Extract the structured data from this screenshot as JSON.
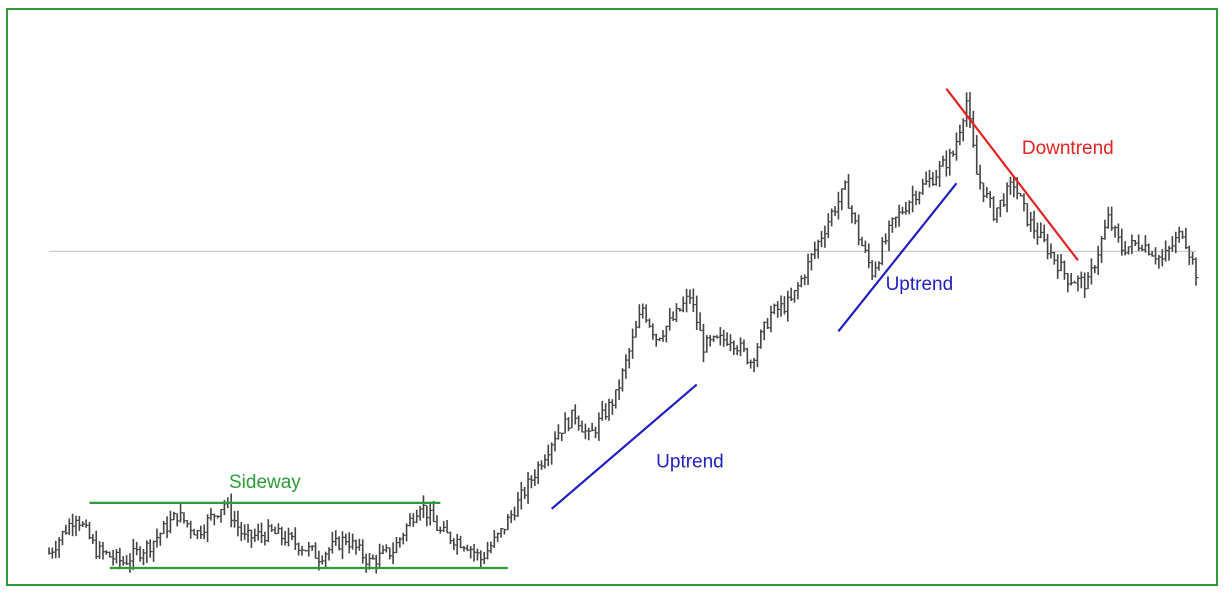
{
  "chart_data": {
    "type": "line",
    "title": "",
    "xlabel": "",
    "ylabel": "",
    "price_path": [
      [
        0,
        5
      ],
      [
        8,
        18
      ],
      [
        14,
        6
      ],
      [
        22,
        2
      ],
      [
        30,
        8
      ],
      [
        38,
        18
      ],
      [
        44,
        12
      ],
      [
        52,
        22
      ],
      [
        58,
        10
      ],
      [
        66,
        12
      ],
      [
        74,
        8
      ],
      [
        80,
        4
      ],
      [
        88,
        10
      ],
      [
        95,
        2
      ],
      [
        102,
        6
      ],
      [
        110,
        22
      ],
      [
        116,
        12
      ],
      [
        124,
        8
      ],
      [
        128,
        3
      ],
      [
        134,
        12
      ],
      [
        142,
        28
      ],
      [
        150,
        45
      ],
      [
        156,
        52
      ],
      [
        160,
        44
      ],
      [
        168,
        58
      ],
      [
        176,
        88
      ],
      [
        180,
        78
      ],
      [
        185,
        84
      ],
      [
        190,
        92
      ],
      [
        194,
        75
      ],
      [
        202,
        78
      ],
      [
        208,
        70
      ],
      [
        214,
        86
      ],
      [
        220,
        90
      ],
      [
        226,
        105
      ],
      [
        232,
        120
      ],
      [
        236,
        128
      ],
      [
        240,
        112
      ],
      [
        244,
        100
      ],
      [
        250,
        116
      ],
      [
        256,
        126
      ],
      [
        262,
        132
      ],
      [
        268,
        140
      ],
      [
        272,
        158
      ],
      [
        275,
        133
      ],
      [
        280,
        120
      ],
      [
        286,
        130
      ],
      [
        290,
        118
      ],
      [
        296,
        108
      ],
      [
        302,
        98
      ],
      [
        308,
        96
      ],
      [
        314,
        118
      ],
      [
        318,
        108
      ],
      [
        324,
        110
      ],
      [
        330,
        104
      ],
      [
        336,
        114
      ],
      [
        340,
        100
      ]
    ],
    "ylim": [
      0,
      170
    ],
    "xlim": [
      0,
      340
    ],
    "reference_line": 107,
    "annotations": [
      {
        "id": "sideway",
        "label": "Sideway",
        "color": "#2e9c39",
        "lines": [
          {
            "x1": 12,
            "y1": 22,
            "x2": 116,
            "y2": 22
          },
          {
            "x1": 18,
            "y1": 0,
            "x2": 136,
            "y2": 0
          }
        ],
        "label_at": {
          "x": 64,
          "y": 27
        }
      },
      {
        "id": "uptrend-1",
        "label": "Uptrend",
        "color": "#1f1fc4",
        "lines": [
          {
            "x1": 149,
            "y1": 20,
            "x2": 192,
            "y2": 62
          }
        ],
        "label_at": {
          "x": 190,
          "y": 34
        }
      },
      {
        "id": "uptrend-2",
        "label": "Uptrend",
        "color": "#1f1fc4",
        "lines": [
          {
            "x1": 234,
            "y1": 80,
            "x2": 269,
            "y2": 130
          }
        ],
        "label_at": {
          "x": 258,
          "y": 94
        }
      },
      {
        "id": "downtrend",
        "label": "Downtrend",
        "color": "#e52222",
        "lines": [
          {
            "x1": 266,
            "y1": 162,
            "x2": 305,
            "y2": 104
          }
        ],
        "label_at": {
          "x": 302,
          "y": 140
        }
      }
    ],
    "colors": {
      "frame": "#2e9c39",
      "price": "#444444",
      "reference": "#cccccc"
    },
    "grid": false
  }
}
